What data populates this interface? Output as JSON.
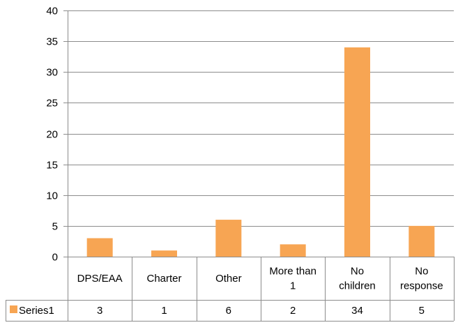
{
  "chart_data": {
    "type": "bar",
    "title": "",
    "xlabel": "",
    "ylabel": "",
    "ylim": [
      0,
      40
    ],
    "yticks": [
      0,
      5,
      10,
      15,
      20,
      25,
      30,
      35,
      40
    ],
    "grid": true,
    "categories": [
      [
        "DPS/EAA"
      ],
      [
        "Charter"
      ],
      [
        "Other"
      ],
      [
        "More than",
        "1"
      ],
      [
        "No",
        "children"
      ],
      [
        "No",
        "response"
      ]
    ],
    "series": [
      {
        "name": "Series1",
        "color": "#F7A553",
        "values": [
          3,
          1,
          6,
          2,
          34,
          5
        ]
      }
    ],
    "data_table": true
  }
}
